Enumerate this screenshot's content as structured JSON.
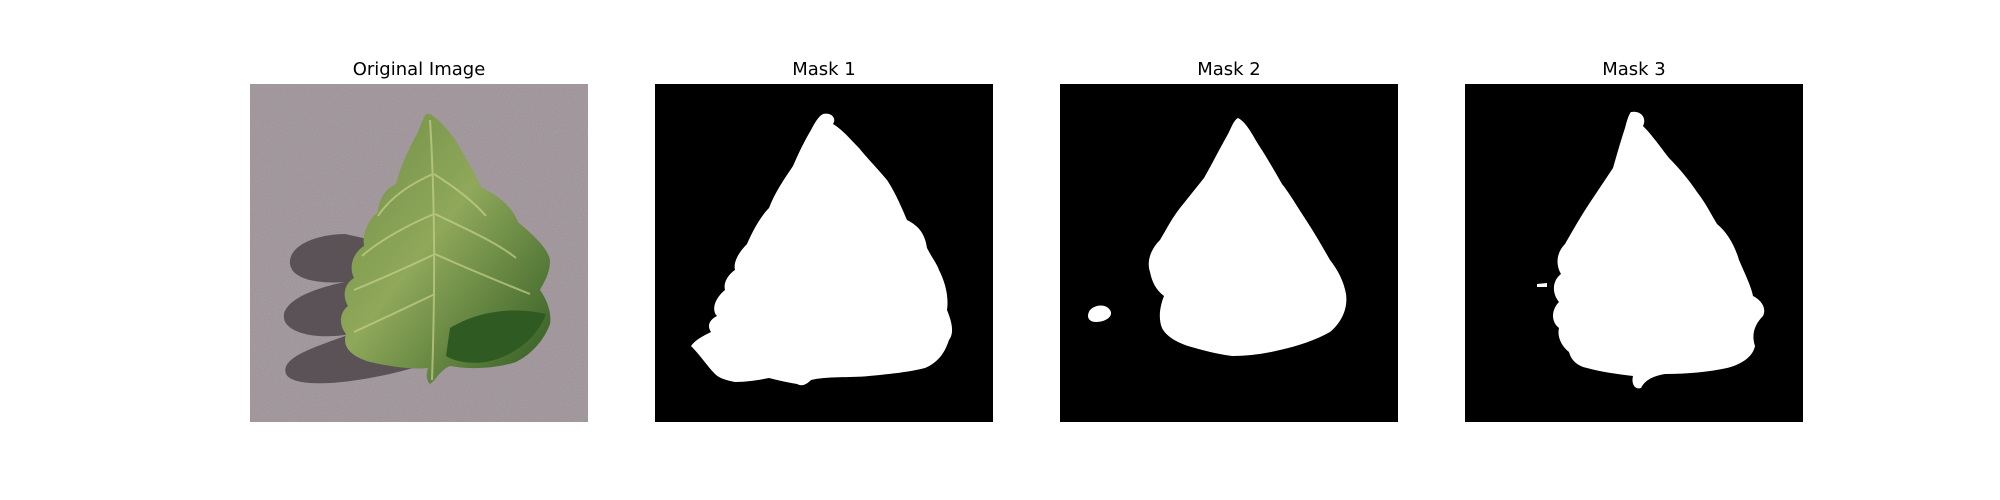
{
  "figure": {
    "panels": [
      {
        "title": "Original Image"
      },
      {
        "title": "Mask 1"
      },
      {
        "title": "Mask 2"
      },
      {
        "title": "Mask 3"
      }
    ]
  },
  "colors": {
    "background": "#a89ea3",
    "leaf_dark": "#3e6b2e",
    "leaf_light": "#8fa85a",
    "shadow": "#5a5257",
    "mask_bg": "#000000",
    "mask_fg": "#ffffff"
  }
}
